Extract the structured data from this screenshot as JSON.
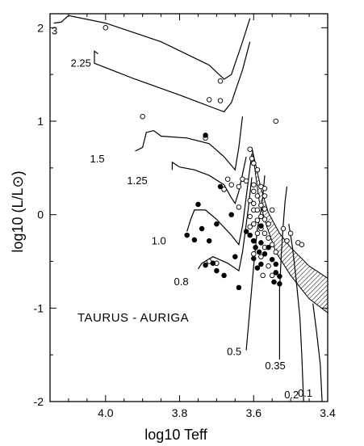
{
  "chart_data": {
    "type": "scatter",
    "title": "",
    "xlabel": "log10 Teff",
    "ylabel": "log10 (L/L⊙)",
    "xlim": [
      4.15,
      3.4
    ],
    "ylim": [
      -2,
      2.15
    ],
    "x_reversed": true,
    "x_ticks": [
      "4.0",
      "3.8",
      "3.6",
      "3.4"
    ],
    "y_ticks": [
      "2",
      "1",
      "0",
      "-1",
      "-2"
    ],
    "annotation": "TAURUS - AURIGA",
    "tracks": [
      {
        "label": "3",
        "points": [
          [
            4.14,
            2.05
          ],
          [
            4.12,
            2.06
          ],
          [
            4.1,
            2.13
          ],
          [
            4.0,
            2.05
          ],
          [
            3.85,
            1.85
          ],
          [
            3.72,
            1.6
          ],
          [
            3.68,
            1.45
          ],
          [
            3.66,
            1.5
          ],
          [
            3.63,
            1.85
          ],
          [
            3.61,
            2.1
          ]
        ]
      },
      {
        "label": "2.25",
        "points": [
          [
            4.02,
            1.72
          ],
          [
            4.03,
            1.75
          ],
          [
            4.03,
            1.62
          ],
          [
            3.92,
            1.45
          ],
          [
            3.8,
            1.28
          ],
          [
            3.72,
            1.16
          ],
          [
            3.68,
            1.1
          ],
          [
            3.66,
            1.2
          ],
          [
            3.63,
            1.55
          ],
          [
            3.61,
            1.85
          ]
        ]
      },
      {
        "label": "1.5",
        "points": [
          [
            3.92,
            0.68
          ],
          [
            3.9,
            0.72
          ],
          [
            3.89,
            0.88
          ],
          [
            3.87,
            0.9
          ],
          [
            3.85,
            0.84
          ],
          [
            3.78,
            0.82
          ],
          [
            3.72,
            0.76
          ],
          [
            3.68,
            0.62
          ],
          [
            3.65,
            0.48
          ],
          [
            3.64,
            0.72
          ],
          [
            3.63,
            1.05
          ]
        ]
      },
      {
        "label": "1.25",
        "points": [
          [
            3.82,
            0.48
          ],
          [
            3.82,
            0.56
          ],
          [
            3.8,
            0.51
          ],
          [
            3.76,
            0.48
          ],
          [
            3.72,
            0.42
          ],
          [
            3.68,
            0.32
          ],
          [
            3.66,
            0.18
          ],
          [
            3.65,
            0.12
          ],
          [
            3.64,
            0.25
          ],
          [
            3.62,
            0.62
          ]
        ]
      },
      {
        "label": "1.0",
        "points": [
          [
            3.78,
            -0.18
          ],
          [
            3.77,
            -0.05
          ],
          [
            3.76,
            0.05
          ],
          [
            3.73,
            0.05
          ],
          [
            3.7,
            -0.05
          ],
          [
            3.66,
            -0.22
          ],
          [
            3.64,
            -0.32
          ],
          [
            3.63,
            -0.12
          ],
          [
            3.615,
            0.35
          ],
          [
            3.605,
            0.65
          ]
        ]
      },
      {
        "label": "0.8",
        "points": [
          [
            3.75,
            -0.58
          ],
          [
            3.74,
            -0.52
          ],
          [
            3.71,
            -0.45
          ],
          [
            3.67,
            -0.52
          ],
          [
            3.64,
            -0.6
          ],
          [
            3.63,
            -0.4
          ],
          [
            3.615,
            0.05
          ],
          [
            3.605,
            0.4
          ]
        ]
      },
      {
        "label": "0.5",
        "points": [
          [
            3.62,
            -1.45
          ],
          [
            3.6,
            -0.55
          ],
          [
            3.59,
            -0.15
          ],
          [
            3.58,
            0.05
          ],
          [
            3.575,
            0.2
          ],
          [
            3.57,
            0.42
          ]
        ]
      },
      {
        "label": "0.35",
        "points": [
          [
            3.53,
            -1.55
          ],
          [
            3.53,
            -0.8
          ],
          [
            3.525,
            -0.4
          ],
          [
            3.52,
            -0.1
          ],
          [
            3.515,
            0.15
          ],
          [
            3.51,
            0.3
          ]
        ]
      },
      {
        "label": "0.2",
        "points": [
          [
            3.465,
            -2.0
          ],
          [
            3.47,
            -1.5
          ],
          [
            3.475,
            -1.1
          ],
          [
            3.485,
            -0.7
          ],
          [
            3.495,
            -0.35
          ],
          [
            3.505,
            -0.1
          ]
        ]
      },
      {
        "label": "0.1",
        "points": [
          [
            3.415,
            -2.0
          ],
          [
            3.42,
            -1.6
          ],
          [
            3.43,
            -1.25
          ],
          [
            3.44,
            -0.95
          ]
        ]
      }
    ],
    "birthline": {
      "upper": [
        [
          3.605,
          0.72
        ],
        [
          3.58,
          0.28
        ],
        [
          3.56,
          0.02
        ],
        [
          3.53,
          -0.2
        ],
        [
          3.5,
          -0.35
        ],
        [
          3.45,
          -0.55
        ],
        [
          3.4,
          -0.68
        ]
      ],
      "lower": [
        [
          3.6,
          0.58
        ],
        [
          3.585,
          0.15
        ],
        [
          3.565,
          -0.12
        ],
        [
          3.54,
          -0.4
        ],
        [
          3.5,
          -0.65
        ],
        [
          3.45,
          -0.9
        ],
        [
          3.4,
          -1.05
        ]
      ]
    },
    "series": [
      {
        "marker": "open",
        "points": [
          [
            4.0,
            2.0
          ],
          [
            3.69,
            1.43
          ],
          [
            3.69,
            1.22
          ],
          [
            3.72,
            1.23
          ],
          [
            3.9,
            1.05
          ],
          [
            3.54,
            1.0
          ],
          [
            3.73,
            0.82
          ],
          [
            3.61,
            0.7
          ],
          [
            3.605,
            0.6
          ],
          [
            3.6,
            0.55
          ],
          [
            3.59,
            0.48
          ],
          [
            3.67,
            0.38
          ],
          [
            3.63,
            0.38
          ],
          [
            3.62,
            0.36
          ],
          [
            3.64,
            0.3
          ],
          [
            3.66,
            0.32
          ],
          [
            3.6,
            0.32
          ],
          [
            3.58,
            0.3
          ],
          [
            3.57,
            0.28
          ],
          [
            3.6,
            0.25
          ],
          [
            3.59,
            0.2
          ],
          [
            3.57,
            0.2
          ],
          [
            3.61,
            0.15
          ],
          [
            3.6,
            0.12
          ],
          [
            3.58,
            0.1
          ],
          [
            3.57,
            0.06
          ],
          [
            3.64,
            0.08
          ],
          [
            3.6,
            0.05
          ],
          [
            3.59,
            0.05
          ],
          [
            3.55,
            0.05
          ],
          [
            3.61,
            -0.02
          ],
          [
            3.58,
            -0.02
          ],
          [
            3.59,
            -0.06
          ],
          [
            3.57,
            -0.05
          ],
          [
            3.6,
            -0.1
          ],
          [
            3.56,
            -0.1
          ],
          [
            3.61,
            -0.13
          ],
          [
            3.58,
            -0.15
          ],
          [
            3.52,
            -0.15
          ],
          [
            3.5,
            -0.2
          ],
          [
            3.59,
            -0.2
          ],
          [
            3.57,
            -0.2
          ],
          [
            3.56,
            -0.25
          ],
          [
            3.6,
            -0.28
          ],
          [
            3.57,
            -0.35
          ],
          [
            3.55,
            -0.32
          ],
          [
            3.48,
            -0.3
          ],
          [
            3.47,
            -0.32
          ],
          [
            3.6,
            -0.42
          ],
          [
            3.58,
            -0.45
          ],
          [
            3.54,
            -0.4
          ],
          [
            3.51,
            -0.28
          ],
          [
            3.56,
            -0.55
          ],
          [
            3.575,
            -0.65
          ],
          [
            3.55,
            -0.65
          ],
          [
            3.7,
            -0.52
          ],
          [
            3.72,
            -0.5
          ],
          [
            3.68,
            0.27
          ]
        ]
      },
      {
        "marker": "filled",
        "points": [
          [
            3.73,
            0.85
          ],
          [
            3.69,
            0.3
          ],
          [
            3.66,
            0.0
          ],
          [
            3.75,
            0.11
          ],
          [
            3.74,
            -0.15
          ],
          [
            3.7,
            -0.1
          ],
          [
            3.78,
            -0.22
          ],
          [
            3.76,
            -0.27
          ],
          [
            3.72,
            -0.28
          ],
          [
            3.71,
            -0.52
          ],
          [
            3.73,
            -0.54
          ],
          [
            3.7,
            -0.6
          ],
          [
            3.68,
            -0.65
          ],
          [
            3.65,
            -0.45
          ],
          [
            3.64,
            -0.78
          ],
          [
            3.61,
            -0.22
          ],
          [
            3.6,
            -0.28
          ],
          [
            3.595,
            -0.35
          ],
          [
            3.58,
            -0.3
          ],
          [
            3.585,
            -0.4
          ],
          [
            3.57,
            -0.42
          ],
          [
            3.58,
            -0.53
          ],
          [
            3.55,
            -0.48
          ],
          [
            3.54,
            -0.53
          ],
          [
            3.54,
            -0.62
          ],
          [
            3.53,
            -0.66
          ],
          [
            3.53,
            -0.74
          ],
          [
            3.545,
            -0.72
          ],
          [
            3.56,
            -0.35
          ],
          [
            3.6,
            -0.47
          ],
          [
            3.59,
            -0.57
          ],
          [
            3.62,
            -0.18
          ],
          [
            3.58,
            -0.12
          ]
        ]
      }
    ]
  }
}
